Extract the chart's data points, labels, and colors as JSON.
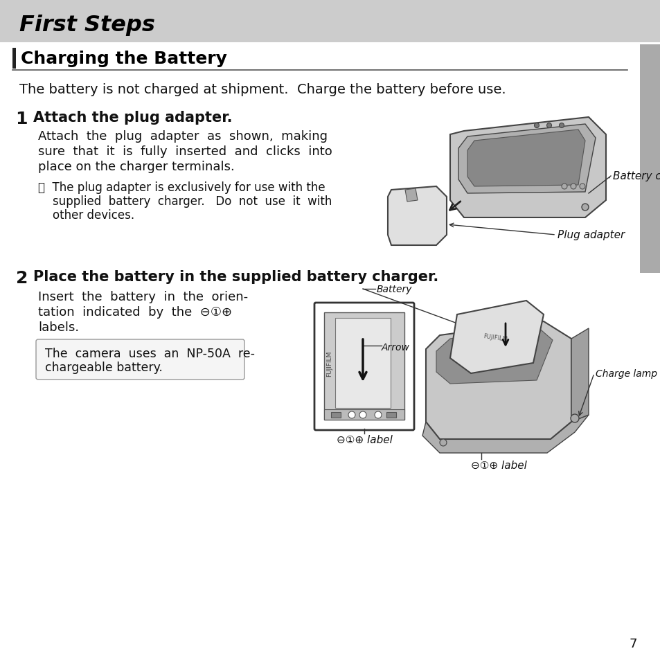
{
  "page_bg": "#ffffff",
  "header_bg": "#cccccc",
  "header_text": "First Steps",
  "section_title": "Charging the Battery",
  "intro_text": "The battery is not charged at shipment.  Charge the battery before use.",
  "step1_num": "1",
  "step1_heading": "Attach the plug adapter.",
  "step1_body_lines": [
    "Attach  the  plug  adapter  as  shown,  making",
    "sure  that  it  is  fully  inserted  and  clicks  into",
    "place on the charger terminals."
  ],
  "step1_note_lines": [
    "ⓘ  The plug adapter is exclusively for use with the",
    "    supplied  battery  charger.   Do  not  use  it  with",
    "    other devices."
  ],
  "step1_label_charger": "Battery charger",
  "step1_label_plug": "Plug adapter",
  "step2_num": "2",
  "step2_heading": "Place the battery in the supplied battery charger.",
  "step2_body_lines": [
    "Insert  the  battery  in  the  orien-",
    "tation  indicated  by  the  ⊖①⊕",
    "labels."
  ],
  "step2_note_lines": [
    "The  camera  uses  an  NP-50A  re-",
    "chargeable battery."
  ],
  "step2_label_battery": "Battery",
  "step2_label_arrow": "Arrow",
  "step2_label_charge": "Charge lamp",
  "step2_label_label1": "⊖①⊕ label",
  "step2_label_label2": "⊖①⊕ label",
  "page_number": "7",
  "sidebar_color": "#aaaaaa",
  "left_bar_color": "#222222",
  "charger_fill": "#c8c8c8",
  "charger_edge": "#444444",
  "plug_fill": "#d0d0d0",
  "batt_fill": "#d8d8d8",
  "charger2_fill": "#c0c0c0"
}
